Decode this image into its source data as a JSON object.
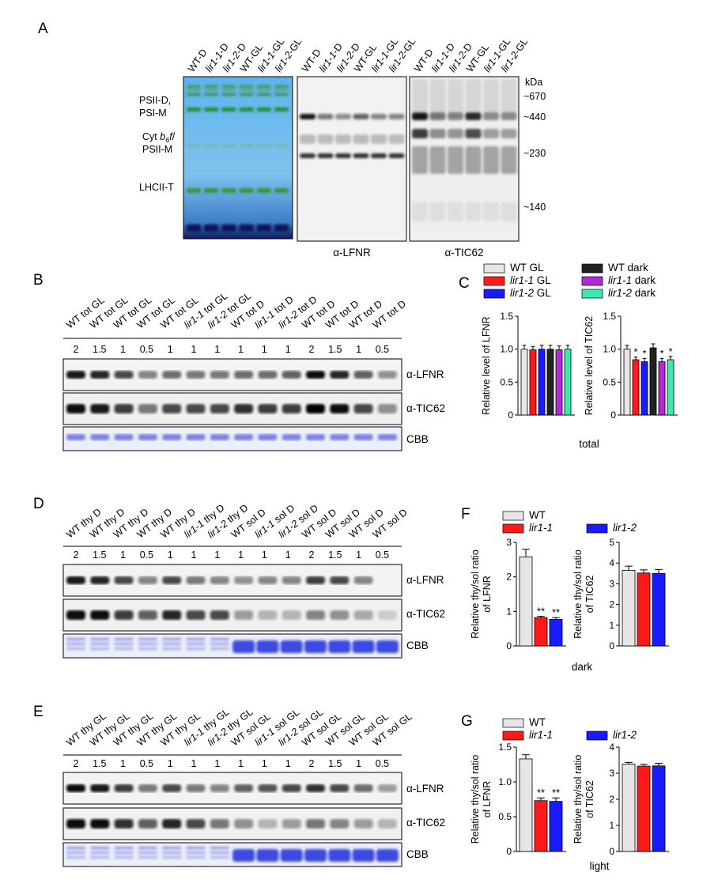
{
  "panels": {
    "A": {
      "letter": "A",
      "lanes": [
        "WT-D",
        "lir1-1-D",
        "lir1-2-D",
        "WT-GL",
        "lir1-1-GL",
        "lir1-2-GL"
      ],
      "lanes_italic": [
        false,
        true,
        true,
        false,
        true,
        true
      ],
      "complex_labels": [
        "PSII-D,",
        "PSI-M",
        "Cyt b6f/",
        "PSII-M",
        "LHCII-T"
      ],
      "antibodies": [
        "α-LFNR",
        "α-TIC62"
      ],
      "kda_unit": "kDa",
      "markers": [
        "~670",
        "~440",
        "~230",
        "~140"
      ]
    },
    "B": {
      "letter": "B",
      "lanes": [
        "WT tot GL",
        "WT tot GL",
        "WT tot GL",
        "WT tot GL",
        "WT tot GL",
        "lir1-1 tot GL",
        "lir1-2 tot GL",
        "WT tot D",
        "lir1-1 tot D",
        "lir1-2 tot D",
        "WT tot D",
        "WT tot D",
        "WT tot D",
        "WT tot D"
      ],
      "loadings": [
        "2",
        "1.5",
        "1",
        "0.5",
        "1",
        "1",
        "1",
        "1",
        "1",
        "1",
        "2",
        "1.5",
        "1",
        "0.5"
      ],
      "blots": [
        "α-LFNR",
        "α-TIC62",
        "CBB"
      ]
    },
    "C": {
      "letter": "C",
      "legend": [
        "WT GL",
        "lir1-1 GL",
        "lir1-2 GL",
        "WT dark",
        "lir1-1 dark",
        "lir1-2 dark"
      ],
      "caption": "total"
    },
    "D": {
      "letter": "D",
      "lanes": [
        "WT thy D",
        "WT thy D",
        "WT thy D",
        "WT thy D",
        "WT thy D",
        "lir1-1 thy D",
        "lir1-2 thy D",
        "WT sol D",
        "lir1-1 sol D",
        "lir1-2 sol D",
        "WT sol D",
        "WT sol D",
        "WT sol D",
        "WT sol D"
      ],
      "loadings": [
        "2",
        "1.5",
        "1",
        "0.5",
        "1",
        "1",
        "1",
        "1",
        "1",
        "1",
        "2",
        "1.5",
        "1",
        "0.5"
      ],
      "blots": [
        "α-LFNR",
        "α-TIC62",
        "CBB"
      ]
    },
    "E": {
      "letter": "E",
      "lanes": [
        "WT thy GL",
        "WT thy GL",
        "WT thy GL",
        "WT thy GL",
        "WT thy GL",
        "lir1-1 thy GL",
        "lir1-2 thy GL",
        "WT sol GL",
        "lir1-1 sol GL",
        "lir1-2 sol GL",
        "WT sol GL",
        "WT sol GL",
        "WT sol GL",
        "WT sol GL"
      ],
      "loadings": [
        "2",
        "1.5",
        "1",
        "0.5",
        "1",
        "1",
        "1",
        "1",
        "1",
        "1",
        "2",
        "1.5",
        "1",
        "0.5"
      ],
      "blots": [
        "α-LFNR",
        "α-TIC62",
        "CBB"
      ]
    },
    "F": {
      "letter": "F",
      "legend": [
        "WT",
        "lir1-1",
        "lir1-2"
      ],
      "caption": "dark"
    },
    "G": {
      "letter": "G",
      "legend": [
        "WT",
        "lir1-1",
        "lir1-2"
      ],
      "caption": "light"
    }
  },
  "colors": {
    "wt_gl": "#e6e6e6",
    "lir1_1_gl": "#ff1a1a",
    "lir1_2_gl": "#1a1aff",
    "wt_dark": "#222222",
    "lir1_1_dark": "#b02ad8",
    "lir1_2_dark": "#3fe8b0"
  },
  "chart_data": [
    {
      "id": "C-left",
      "type": "bar",
      "categories": [
        "WT GL",
        "lir1-1 GL",
        "lir1-2 GL",
        "WT dark",
        "lir1-1 dark",
        "lir1-2 dark"
      ],
      "values": [
        1.0,
        0.99,
        1.0,
        1.0,
        0.99,
        1.0
      ],
      "errors": [
        0.06,
        0.05,
        0.06,
        0.06,
        0.06,
        0.06
      ],
      "significance": [
        "",
        "",
        "",
        "",
        "",
        ""
      ],
      "ylabel": "Relative level of LFNR",
      "ylim": [
        0,
        1.5
      ],
      "yticks": [
        "0",
        "0.5",
        "1.0",
        "1.5"
      ]
    },
    {
      "id": "C-right",
      "type": "bar",
      "categories": [
        "WT GL",
        "lir1-1 GL",
        "lir1-2 GL",
        "WT dark",
        "lir1-1 dark",
        "lir1-2 dark"
      ],
      "values": [
        1.0,
        0.84,
        0.81,
        1.02,
        0.81,
        0.84
      ],
      "errors": [
        0.06,
        0.04,
        0.05,
        0.06,
        0.05,
        0.05
      ],
      "significance": [
        "",
        "*",
        "*",
        "",
        "*",
        "*"
      ],
      "ylabel": "Relative level of TIC62",
      "ylim": [
        0,
        1.5
      ],
      "yticks": [
        "0",
        "0.5",
        "1.0",
        "1.5"
      ]
    },
    {
      "id": "F-left",
      "type": "bar",
      "categories": [
        "WT",
        "lir1-1",
        "lir1-2"
      ],
      "values": [
        2.58,
        0.82,
        0.77
      ],
      "errors": [
        0.22,
        0.04,
        0.05
      ],
      "significance": [
        "",
        "**",
        "**"
      ],
      "ylabel": [
        "Relative thy/sol ratio",
        "of LFNR"
      ],
      "ylim": [
        0,
        3
      ],
      "yticks": [
        "0",
        "1",
        "2",
        "3"
      ]
    },
    {
      "id": "F-right",
      "type": "bar",
      "categories": [
        "WT",
        "lir1-1",
        "lir1-2"
      ],
      "values": [
        3.65,
        3.52,
        3.5
      ],
      "errors": [
        0.2,
        0.15,
        0.18
      ],
      "significance": [
        "",
        "",
        ""
      ],
      "ylabel": [
        "Relative thy/sol ratio",
        "of TIC62"
      ],
      "ylim": [
        0,
        5
      ],
      "yticks": [
        "0",
        "1",
        "2",
        "3",
        "4",
        "5"
      ]
    },
    {
      "id": "G-left",
      "type": "bar",
      "categories": [
        "WT",
        "lir1-1",
        "lir1-2"
      ],
      "values": [
        1.33,
        0.73,
        0.72
      ],
      "errors": [
        0.06,
        0.04,
        0.05
      ],
      "significance": [
        "",
        "**",
        "**"
      ],
      "ylabel": [
        "Relative thy/sol ratio",
        "of LFNR"
      ],
      "ylim": [
        0,
        1.5
      ],
      "yticks": [
        "0",
        "0.5",
        "1.0",
        "1.5"
      ]
    },
    {
      "id": "G-right",
      "type": "bar",
      "categories": [
        "WT",
        "lir1-1",
        "lir1-2"
      ],
      "values": [
        3.35,
        3.27,
        3.28
      ],
      "errors": [
        0.06,
        0.07,
        0.1
      ],
      "significance": [
        "",
        "",
        ""
      ],
      "ylabel": [
        "Relative thy/sol ratio",
        "of TIC62"
      ],
      "ylim": [
        0,
        4
      ],
      "yticks": [
        "0",
        "1",
        "2",
        "3",
        "4"
      ]
    }
  ]
}
